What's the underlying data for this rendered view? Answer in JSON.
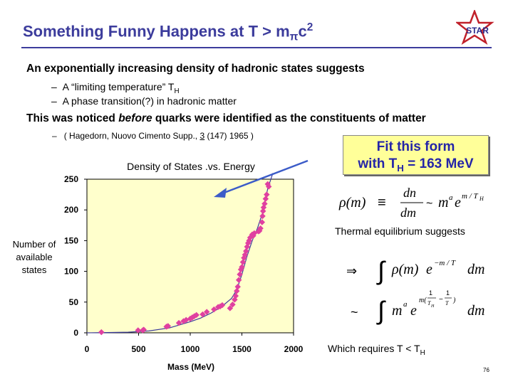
{
  "title": {
    "main": "Something Funny Happens at T > m",
    "sub": "π",
    "tail": "c",
    "sup": "2"
  },
  "logo": {
    "text": "STAR"
  },
  "bullets": {
    "line1": "An exponentially increasing density of hadronic states suggests",
    "sub1_pre": "A “limiting temperature” T",
    "sub1_sub": "H",
    "sub2": "A phase transition(?) in hadronic matter",
    "line2_pre": "This was noticed ",
    "line2_em": "before",
    "line2_post": " quarks were identified as the constituents of matter",
    "ref_pre": "( Hagedorn, Nuovo Cimento Supp., ",
    "ref_vol": "3",
    "ref_post": " (147) 1965 )",
    "dash": "–"
  },
  "callout": {
    "line1": "Fit this form",
    "line2_pre": "with T",
    "line2_sub": "H",
    "line2_post": " = 163 MeV"
  },
  "right": {
    "thermal": "Thermal equilibrium suggests",
    "requires_pre": "Which requires T < T",
    "requires_sub": "H"
  },
  "page_number": "76",
  "chart_data": {
    "type": "scatter",
    "title": "Density of States .vs. Energy",
    "xlabel": "Mass (MeV)",
    "ylabel": [
      "Number of",
      "available",
      "states"
    ],
    "xlim": [
      0,
      2000
    ],
    "ylim": [
      0,
      250
    ],
    "xticks": [
      0,
      500,
      1000,
      1500,
      2000
    ],
    "yticks": [
      0,
      50,
      100,
      150,
      200,
      250
    ],
    "point_color": "#e040a0",
    "curve_color": "#3c3c9c",
    "plot_bg": "#ffffcc",
    "points": [
      [
        140,
        1
      ],
      [
        495,
        4
      ],
      [
        540,
        4
      ],
      [
        550,
        5
      ],
      [
        770,
        10
      ],
      [
        785,
        11
      ],
      [
        890,
        16
      ],
      [
        935,
        19
      ],
      [
        960,
        21
      ],
      [
        1000,
        23
      ],
      [
        1020,
        25
      ],
      [
        1040,
        27
      ],
      [
        1060,
        29
      ],
      [
        1120,
        30
      ],
      [
        1160,
        34
      ],
      [
        1230,
        38
      ],
      [
        1270,
        42
      ],
      [
        1290,
        43
      ],
      [
        1310,
        45
      ],
      [
        1385,
        40
      ],
      [
        1410,
        46
      ],
      [
        1430,
        54
      ],
      [
        1440,
        60
      ],
      [
        1450,
        68
      ],
      [
        1460,
        75
      ],
      [
        1470,
        86
      ],
      [
        1480,
        95
      ],
      [
        1490,
        103
      ],
      [
        1500,
        107
      ],
      [
        1510,
        115
      ],
      [
        1520,
        122
      ],
      [
        1530,
        127
      ],
      [
        1540,
        133
      ],
      [
        1550,
        140
      ],
      [
        1560,
        146
      ],
      [
        1570,
        150
      ],
      [
        1580,
        155
      ],
      [
        1600,
        160
      ],
      [
        1610,
        158
      ],
      [
        1620,
        162
      ],
      [
        1660,
        165
      ],
      [
        1670,
        166
      ],
      [
        1680,
        170
      ],
      [
        1695,
        180
      ],
      [
        1700,
        190
      ],
      [
        1705,
        198
      ],
      [
        1710,
        204
      ],
      [
        1720,
        210
      ],
      [
        1730,
        218
      ],
      [
        1740,
        225
      ],
      [
        1760,
        238
      ],
      [
        1750,
        242
      ]
    ],
    "curve_x": [
      0,
      200,
      400,
      600,
      800,
      1000,
      1100,
      1200,
      1300,
      1400,
      1450,
      1500,
      1550,
      1600,
      1650,
      1700,
      1750,
      1800
    ],
    "curve_y": [
      0,
      0.5,
      1,
      3,
      8,
      18,
      24,
      32,
      42,
      56,
      70,
      95,
      125,
      150,
      170,
      195,
      235,
      262
    ]
  }
}
